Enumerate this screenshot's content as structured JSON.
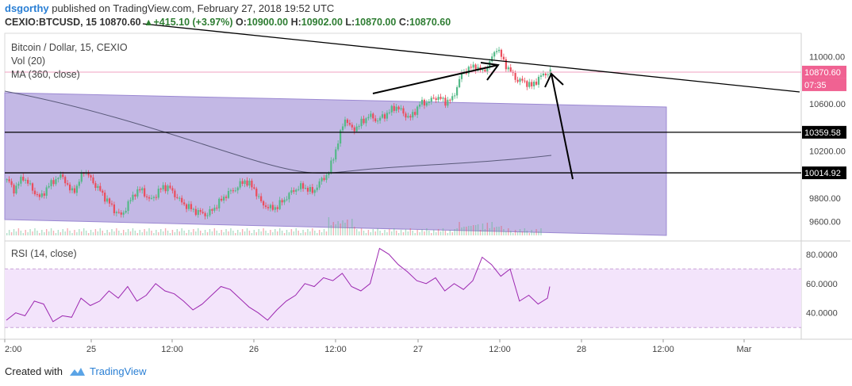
{
  "header": {
    "username": "dsgorthy",
    "published_text": "published on TradingView.com, February 27, 2018 19:52 UTC",
    "symbol": "CEXIO:BTCUSD, 15",
    "last": "10870.60",
    "change": "+415.10 (+3.97%)",
    "o_label": "O:",
    "o_value": "10900.00",
    "h_label": "H:",
    "h_value": "10902.00",
    "l_label": "L:",
    "l_value": "10870.00",
    "c_label": "C:",
    "c_value": "10870.60"
  },
  "pane_labels": {
    "title": "Bitcoin / Dollar, 15, CEXIO",
    "vol": "Vol (20)",
    "ma": "MA (360, close)",
    "rsi": "RSI (14, close)"
  },
  "footer": {
    "created_with": "Created with",
    "brand": "TradingView"
  },
  "colors": {
    "up": "#53b987",
    "down": "#eb4d5c",
    "channel_fill": "#b9abe0",
    "channel_line": "#9b88d2",
    "rsi_line": "#9c27b0",
    "rsi_band": "#f3e4fb",
    "ma_line": "#5a5a7a",
    "price_line": "#f0a0c0"
  },
  "chart_data": [
    {
      "type": "candlestick",
      "title": "Bitcoin / Dollar, 15, CEXIO",
      "ylim": [
        9450,
        11200
      ],
      "y_ticks": [
        "11000.00",
        "10600.00",
        "10200.00",
        "9800.00",
        "9600.00"
      ],
      "x_ticks": [
        "2:00",
        "25",
        "12:00",
        "26",
        "12:00",
        "27",
        "12:00",
        "28",
        "12:00",
        "Mar"
      ],
      "price_labels": [
        "10870.60",
        "07:35",
        "10359.58",
        "10014.92"
      ],
      "levels": [
        {
          "label": "10359.58",
          "value": 10359.58
        },
        {
          "label": "10014.92",
          "value": 10014.92
        }
      ],
      "current_price": 10870.6,
      "countdown": "07:35",
      "close_path": [
        [
          0,
          9960
        ],
        [
          6,
          9870
        ],
        [
          14,
          9980
        ],
        [
          20,
          9900
        ],
        [
          28,
          9800
        ],
        [
          34,
          9880
        ],
        [
          40,
          9950
        ],
        [
          48,
          9990
        ],
        [
          54,
          9860
        ],
        [
          60,
          9890
        ],
        [
          66,
          10040
        ],
        [
          72,
          9960
        ],
        [
          80,
          9860
        ],
        [
          86,
          9780
        ],
        [
          92,
          9700
        ],
        [
          98,
          9650
        ],
        [
          104,
          9750
        ],
        [
          110,
          9850
        ],
        [
          116,
          9870
        ],
        [
          122,
          9780
        ],
        [
          128,
          9830
        ],
        [
          134,
          9900
        ],
        [
          140,
          9880
        ],
        [
          148,
          9780
        ],
        [
          156,
          9720
        ],
        [
          164,
          9680
        ],
        [
          172,
          9660
        ],
        [
          180,
          9740
        ],
        [
          188,
          9830
        ],
        [
          196,
          9880
        ],
        [
          204,
          9950
        ],
        [
          212,
          9880
        ],
        [
          218,
          9760
        ],
        [
          226,
          9710
        ],
        [
          232,
          9730
        ],
        [
          238,
          9790
        ],
        [
          246,
          9870
        ],
        [
          254,
          9900
        ],
        [
          262,
          9850
        ],
        [
          268,
          9930
        ],
        [
          276,
          10020
        ],
        [
          284,
          10280
        ],
        [
          290,
          10480
        ],
        [
          296,
          10380
        ],
        [
          302,
          10420
        ],
        [
          310,
          10500
        ],
        [
          318,
          10460
        ],
        [
          326,
          10520
        ],
        [
          334,
          10580
        ],
        [
          340,
          10520
        ],
        [
          346,
          10480
        ],
        [
          354,
          10600
        ],
        [
          362,
          10620
        ],
        [
          368,
          10660
        ],
        [
          376,
          10620
        ],
        [
          382,
          10640
        ],
        [
          390,
          10860
        ],
        [
          396,
          10900
        ],
        [
          402,
          10920
        ],
        [
          408,
          10870
        ],
        [
          414,
          10950
        ],
        [
          420,
          11080
        ],
        [
          426,
          10960
        ],
        [
          432,
          10870
        ],
        [
          438,
          10800
        ],
        [
          444,
          10790
        ],
        [
          450,
          10750
        ],
        [
          456,
          10820
        ],
        [
          462,
          10860
        ],
        [
          466,
          10870
        ]
      ]
    },
    {
      "type": "line",
      "title": "RSI (14, close)",
      "ylim": [
        22,
        88
      ],
      "y_ticks": [
        "80.0000",
        "60.0000",
        "40.0000"
      ],
      "bands": [
        30,
        70
      ],
      "x": [
        0,
        8,
        16,
        24,
        32,
        40,
        48,
        56,
        64,
        72,
        80,
        88,
        96,
        104,
        112,
        120,
        128,
        136,
        144,
        152,
        160,
        168,
        176,
        184,
        192,
        200,
        208,
        216,
        224,
        232,
        240,
        248,
        256,
        264,
        272,
        280,
        288,
        296,
        304,
        312,
        320,
        328,
        336,
        344,
        352,
        360,
        368,
        376,
        384,
        392,
        400,
        408,
        416,
        424,
        432,
        440,
        448,
        456,
        464,
        466
      ],
      "values": [
        35,
        40,
        38,
        48,
        46,
        34,
        38,
        37,
        50,
        45,
        48,
        55,
        50,
        58,
        48,
        52,
        60,
        55,
        53,
        48,
        42,
        46,
        52,
        58,
        56,
        50,
        44,
        40,
        35,
        42,
        48,
        52,
        60,
        58,
        64,
        62,
        67,
        58,
        55,
        60,
        84,
        80,
        73,
        68,
        62,
        60,
        64,
        55,
        60,
        56,
        62,
        78,
        73,
        65,
        70,
        48,
        52,
        46,
        50,
        58
      ]
    }
  ]
}
